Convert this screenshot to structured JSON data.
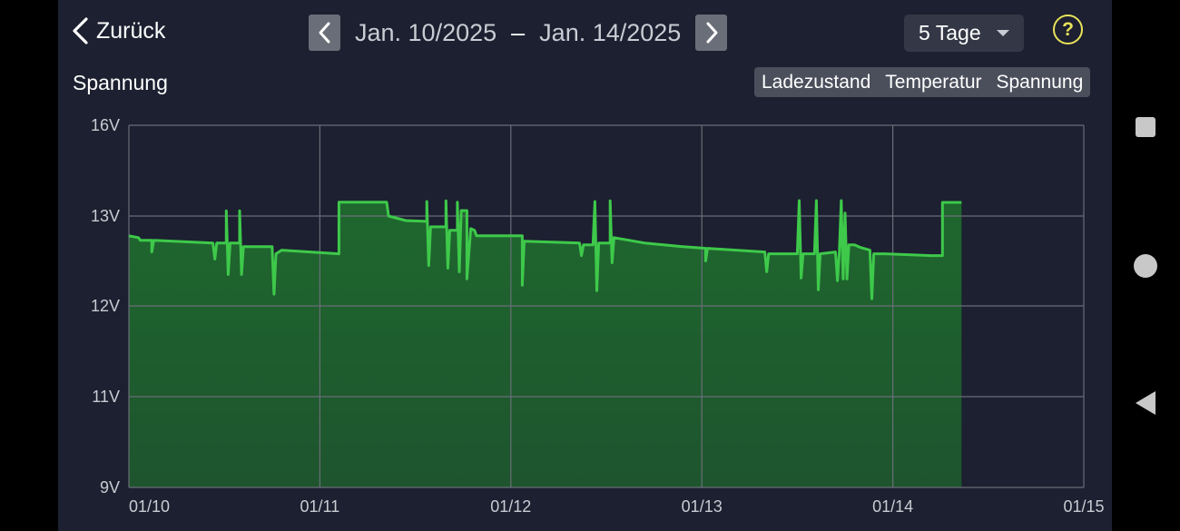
{
  "header": {
    "back_label": "Zurück",
    "date_start": "Jan. 10/2025",
    "date_separator": "–",
    "date_end": "Jan. 14/2025",
    "range_selected": "5 Tage",
    "help_symbol": "?"
  },
  "chart_title": "Spannung",
  "tabs": [
    {
      "label": "Ladezustand",
      "active": false
    },
    {
      "label": "Temperatur",
      "active": false
    },
    {
      "label": "Spannung",
      "active": true
    }
  ],
  "colors": {
    "background": "#1c2030",
    "line": "#3ec94a",
    "fill": "#1f6b2e",
    "grid": "#6a6e78",
    "accent": "#1499e0",
    "help": "#e9e35a"
  },
  "chart_data": {
    "type": "area",
    "title": "Spannung",
    "xlabel": "",
    "ylabel": "",
    "x_unit": "days (1.0 = one day, 0 = 01/10 00:00)",
    "xlim": [
      0,
      5
    ],
    "y_ticks": [
      {
        "value": 9,
        "label": "9V"
      },
      {
        "value": 11,
        "label": "11V"
      },
      {
        "value": 12,
        "label": "12V"
      },
      {
        "value": 13,
        "label": "13V"
      },
      {
        "value": 16,
        "label": "16V"
      }
    ],
    "x_ticks": [
      {
        "value": 0,
        "label": "01/10"
      },
      {
        "value": 1,
        "label": "01/11"
      },
      {
        "value": 2,
        "label": "01/12"
      },
      {
        "value": 3,
        "label": "01/13"
      },
      {
        "value": 4,
        "label": "01/14"
      },
      {
        "value": 5,
        "label": "01/15"
      }
    ],
    "grid": true,
    "series": [
      {
        "points": [
          [
            0.0,
            12.78
          ],
          [
            0.05,
            12.76
          ],
          [
            0.06,
            12.73
          ],
          [
            0.12,
            12.73
          ],
          [
            0.12,
            12.6
          ],
          [
            0.13,
            12.73
          ],
          [
            0.44,
            12.7
          ],
          [
            0.45,
            12.52
          ],
          [
            0.46,
            12.7
          ],
          [
            0.51,
            12.7
          ],
          [
            0.51,
            13.17
          ],
          [
            0.52,
            12.35
          ],
          [
            0.53,
            12.7
          ],
          [
            0.58,
            12.7
          ],
          [
            0.58,
            13.17
          ],
          [
            0.59,
            12.35
          ],
          [
            0.6,
            12.66
          ],
          [
            0.75,
            12.66
          ],
          [
            0.76,
            12.13
          ],
          [
            0.77,
            12.58
          ],
          [
            0.8,
            12.62
          ],
          [
            1.1,
            12.58
          ],
          [
            1.1,
            13.46
          ],
          [
            1.35,
            13.46
          ],
          [
            1.36,
            13.0
          ],
          [
            1.45,
            12.95
          ],
          [
            1.56,
            12.94
          ],
          [
            1.56,
            13.48
          ],
          [
            1.57,
            12.45
          ],
          [
            1.58,
            12.88
          ],
          [
            1.66,
            12.88
          ],
          [
            1.66,
            13.5
          ],
          [
            1.67,
            12.42
          ],
          [
            1.68,
            12.84
          ],
          [
            1.72,
            12.84
          ],
          [
            1.72,
            13.46
          ],
          [
            1.73,
            12.38
          ],
          [
            1.74,
            13.18
          ],
          [
            1.77,
            13.18
          ],
          [
            1.77,
            12.3
          ],
          [
            1.79,
            12.86
          ],
          [
            1.81,
            12.84
          ],
          [
            1.82,
            12.78
          ],
          [
            2.06,
            12.78
          ],
          [
            2.06,
            12.23
          ],
          [
            2.07,
            12.72
          ],
          [
            2.36,
            12.7
          ],
          [
            2.37,
            12.56
          ],
          [
            2.38,
            12.68
          ],
          [
            2.43,
            12.68
          ],
          [
            2.44,
            13.48
          ],
          [
            2.45,
            12.17
          ],
          [
            2.46,
            12.7
          ],
          [
            2.52,
            12.7
          ],
          [
            2.52,
            13.5
          ],
          [
            2.53,
            12.48
          ],
          [
            2.54,
            12.76
          ],
          [
            2.7,
            12.7
          ],
          [
            2.9,
            12.66
          ],
          [
            3.02,
            12.64
          ],
          [
            3.02,
            12.5
          ],
          [
            3.03,
            12.64
          ],
          [
            3.33,
            12.6
          ],
          [
            3.34,
            12.38
          ],
          [
            3.35,
            12.58
          ],
          [
            3.5,
            12.58
          ],
          [
            3.51,
            13.51
          ],
          [
            3.52,
            12.31
          ],
          [
            3.53,
            12.58
          ],
          [
            3.59,
            12.58
          ],
          [
            3.6,
            13.51
          ],
          [
            3.61,
            12.18
          ],
          [
            3.62,
            12.58
          ],
          [
            3.7,
            12.6
          ],
          [
            3.71,
            12.28
          ],
          [
            3.72,
            12.6
          ],
          [
            3.73,
            13.51
          ],
          [
            3.74,
            12.3
          ],
          [
            3.75,
            13.1
          ],
          [
            3.76,
            12.3
          ],
          [
            3.77,
            12.68
          ],
          [
            3.8,
            12.68
          ],
          [
            3.83,
            12.65
          ],
          [
            3.88,
            12.62
          ],
          [
            3.89,
            12.08
          ],
          [
            3.9,
            12.58
          ],
          [
            3.96,
            12.58
          ],
          [
            4.2,
            12.56
          ],
          [
            4.26,
            12.56
          ],
          [
            4.26,
            13.45
          ],
          [
            4.36,
            13.45
          ]
        ]
      }
    ]
  }
}
